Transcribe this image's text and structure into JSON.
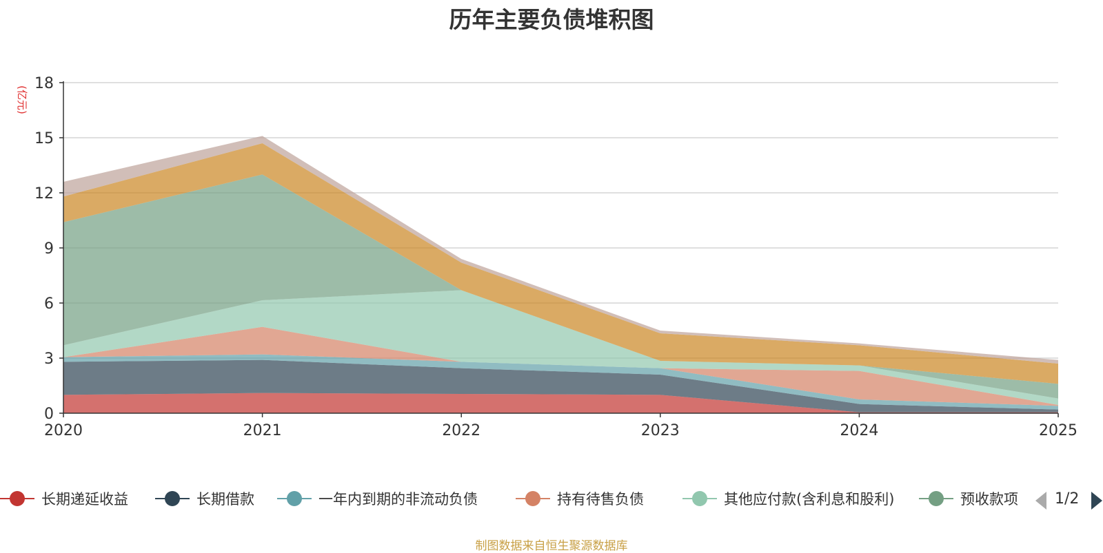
{
  "chart_data": {
    "type": "area",
    "title": "历年主要负债堆积图",
    "ylabel": "(亿元)",
    "x": [
      "2020",
      "2021",
      "2022",
      "2023",
      "2024",
      "2025"
    ],
    "ylim": [
      0,
      18
    ],
    "yticks": [
      0,
      3,
      6,
      9,
      12,
      15,
      18
    ],
    "grid": true,
    "stacked": true,
    "legend_position": "bottom",
    "series": [
      {
        "name": "长期递延收益",
        "color": "#c23531",
        "values": [
          1.0,
          1.1,
          1.05,
          1.0,
          0.05,
          0.05
        ]
      },
      {
        "name": "长期借款",
        "color": "#2f4554",
        "values": [
          1.8,
          1.8,
          1.4,
          1.1,
          0.45,
          0.15
        ]
      },
      {
        "name": "一年内到期的非流动负债",
        "color": "#61a0a8",
        "values": [
          0.25,
          0.3,
          0.35,
          0.35,
          0.25,
          0.2
        ]
      },
      {
        "name": "持有待售负债",
        "color": "#d48265",
        "values": [
          0.0,
          1.5,
          0.0,
          0.0,
          1.55,
          0.05
        ]
      },
      {
        "name": "其他应付款(含利息和股利)",
        "color": "#91c7ae",
        "values": [
          0.65,
          1.45,
          3.9,
          0.4,
          0.3,
          0.35
        ]
      },
      {
        "name": "预收款项",
        "color": "#749f83",
        "values": [
          6.7,
          6.85,
          0.0,
          0.0,
          0.0,
          0.8
        ]
      },
      {
        "name": "",
        "color": "#ca8622",
        "values": [
          1.4,
          1.7,
          1.5,
          1.5,
          1.1,
          1.1
        ]
      },
      {
        "name": "",
        "color": "#bda29a",
        "values": [
          0.8,
          0.4,
          0.2,
          0.15,
          0.1,
          0.2
        ]
      }
    ]
  },
  "legend": {
    "page_indicator": "1/2",
    "prev_icon": "triangle-left-icon",
    "next_icon": "triangle-right-icon"
  },
  "footer": {
    "source": "制图数据来自恒生聚源数据库"
  }
}
